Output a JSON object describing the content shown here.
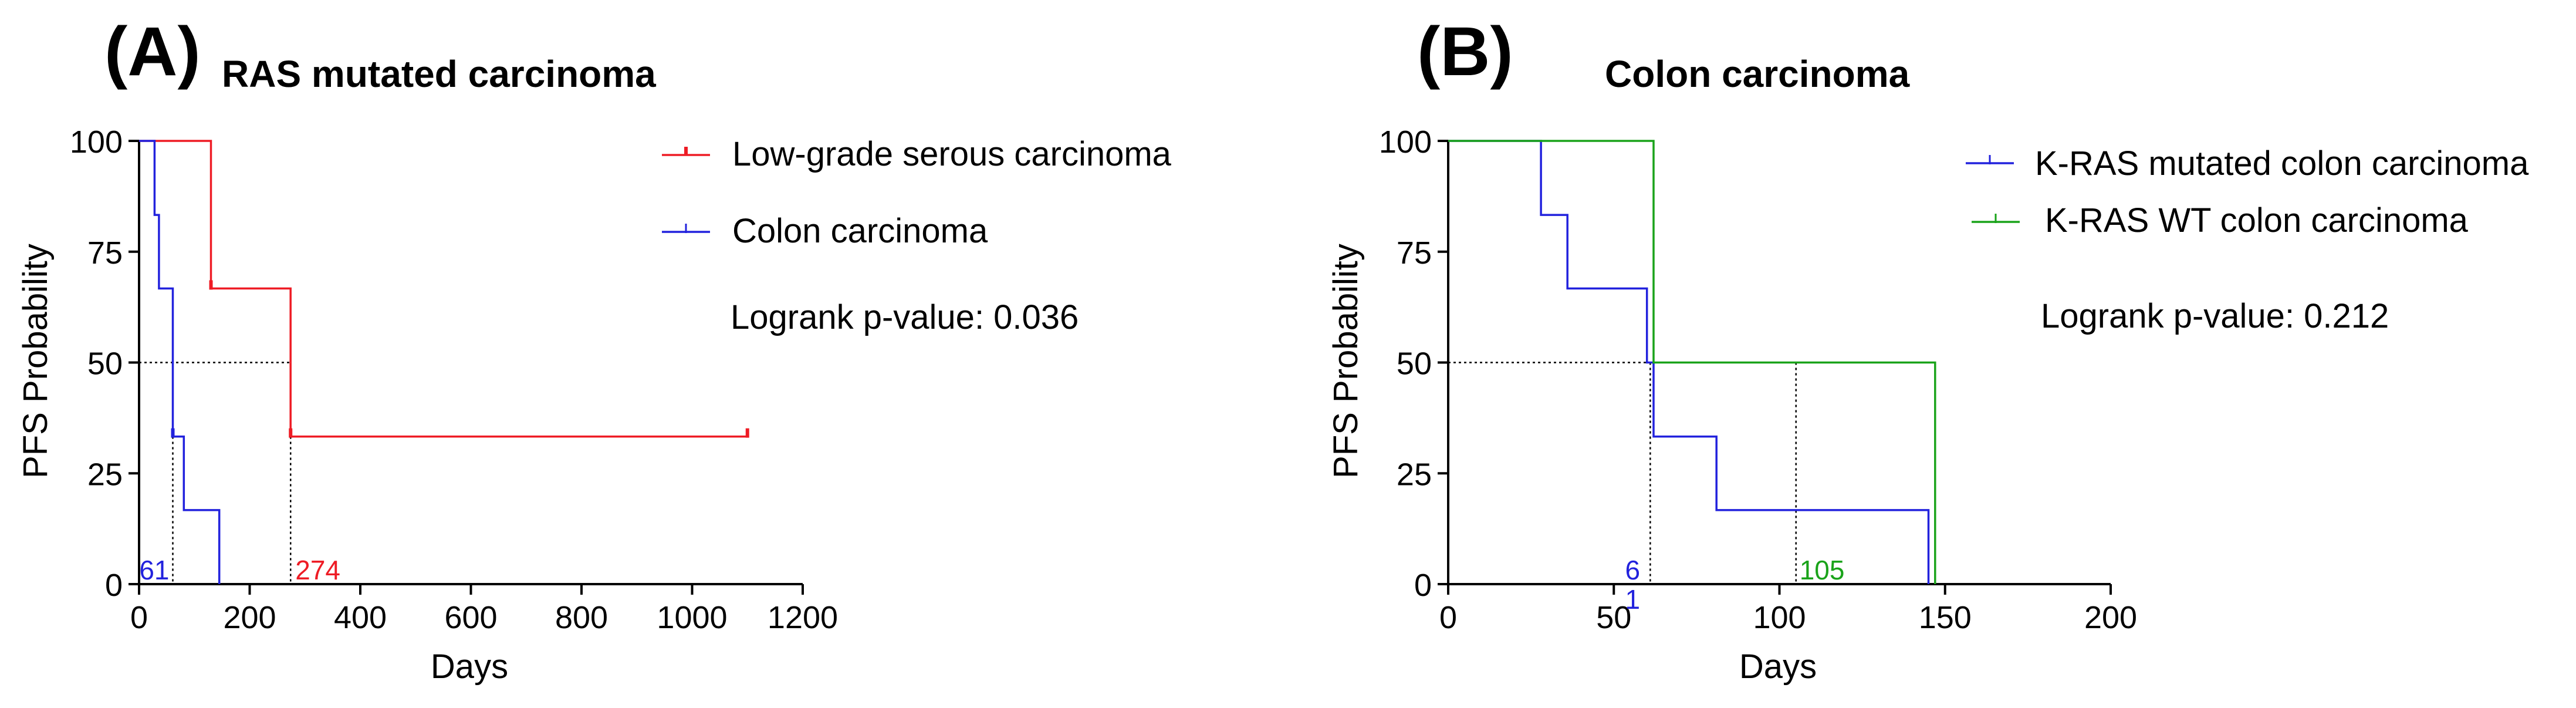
{
  "chart_data": [
    {
      "panel_label": "(A)",
      "type": "line",
      "subtype": "kaplan-meier step",
      "title": "RAS mutated carcinoma",
      "xlabel": "Days",
      "ylabel": "PFS Probability",
      "xlim": [
        0,
        1200
      ],
      "ylim": [
        0,
        100
      ],
      "xticks": [
        0,
        200,
        400,
        600,
        800,
        1000,
        1200
      ],
      "yticks": [
        0,
        25,
        50,
        75,
        100
      ],
      "grid": false,
      "legend_position": "top-right",
      "annotation": "Logrank p-value: 0.036",
      "series": [
        {
          "name": "Low-grade serous carcinoma",
          "color": "#ee1c25",
          "x": [
            0,
            130,
            130,
            274,
            274,
            1100
          ],
          "y": [
            100,
            100,
            66.7,
            66.7,
            33.3,
            33.3
          ],
          "censored": [
            {
              "x": 130,
              "y": 66.7
            },
            {
              "x": 274,
              "y": 33.3
            },
            {
              "x": 1100,
              "y": 33.3
            }
          ],
          "median_label": "274",
          "median_x": 274
        },
        {
          "name": "Colon carcinoma",
          "color": "#2222dd",
          "x": [
            0,
            28,
            28,
            36,
            36,
            61,
            61,
            81,
            81,
            145,
            145
          ],
          "y": [
            100,
            100,
            83.3,
            83.3,
            66.7,
            66.7,
            33.3,
            33.3,
            16.7,
            16.7,
            0
          ],
          "censored": [
            {
              "x": 61,
              "y": 33.3
            }
          ],
          "median_label": "61",
          "median_x": 61
        }
      ]
    },
    {
      "panel_label": "(B)",
      "type": "line",
      "subtype": "kaplan-meier step",
      "title": "Colon carcinoma",
      "xlabel": "Days",
      "ylabel": "PFS Probability",
      "xlim": [
        0,
        200
      ],
      "ylim": [
        0,
        100
      ],
      "xticks": [
        0,
        50,
        100,
        150,
        200
      ],
      "yticks": [
        0,
        25,
        50,
        75,
        100
      ],
      "grid": false,
      "legend_position": "top-right",
      "annotation": "Logrank p-value: 0.212",
      "series": [
        {
          "name": "K-RAS mutated colon carcinoma",
          "color": "#2222dd",
          "x": [
            0,
            28,
            28,
            36,
            36,
            60,
            60,
            62,
            62,
            81,
            81,
            145,
            145
          ],
          "y": [
            100,
            100,
            83.3,
            83.3,
            66.7,
            66.7,
            50,
            50,
            33.3,
            33.3,
            16.7,
            16.7,
            0
          ],
          "censored": [],
          "median_label_top": "6",
          "median_label_bottom": "1",
          "median_x": 61
        },
        {
          "name": "K-RAS WT colon carcinoma",
          "color": "#1aa31a",
          "x": [
            0,
            62,
            62,
            147,
            147
          ],
          "y": [
            100,
            100,
            50,
            50,
            0
          ],
          "censored": [],
          "median_label": "105",
          "median_x": 105
        }
      ]
    }
  ]
}
